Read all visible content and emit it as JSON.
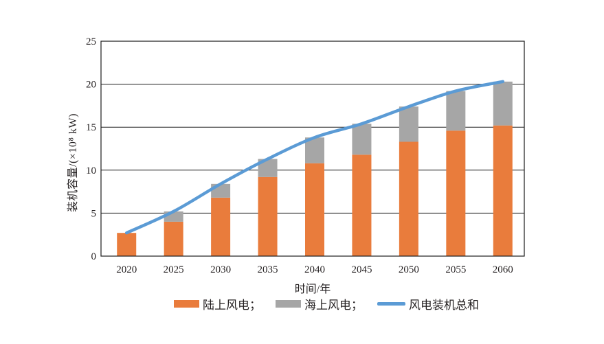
{
  "chart_data": {
    "type": "bar",
    "subtype": "stacked-bars-with-line-overlay",
    "title": "",
    "categories": [
      "2020",
      "2025",
      "2030",
      "2035",
      "2040",
      "2045",
      "2050",
      "2055",
      "2060"
    ],
    "series": [
      {
        "name": "陆上风电",
        "type": "bar",
        "stack": "wind",
        "color": "#E97C3C",
        "values": [
          2.7,
          4.0,
          6.8,
          9.2,
          10.8,
          11.8,
          13.3,
          14.6,
          15.2
        ]
      },
      {
        "name": "海上风电",
        "type": "bar",
        "stack": "wind",
        "color": "#A6A6A6",
        "values": [
          0,
          1.2,
          1.6,
          2.1,
          3.0,
          3.6,
          4.1,
          4.6,
          5.1
        ]
      },
      {
        "name": "风电装机总和",
        "type": "line",
        "color": "#5B9BD5",
        "values": [
          2.7,
          5.2,
          8.4,
          11.3,
          13.8,
          15.4,
          17.4,
          19.2,
          20.3
        ]
      }
    ],
    "xlabel": "时间/年",
    "ylabel": "装机容量/(×10⁸ kW)",
    "ylim": [
      0,
      25
    ],
    "ytick_step": 5,
    "yticks": [
      "0",
      "5",
      "10",
      "15",
      "20",
      "25"
    ],
    "grid": "horizontal",
    "plot_border": true,
    "legend_position": "bottom"
  },
  "legend": {
    "items": [
      {
        "label": "陆上风电；",
        "swatch": "bar",
        "color": "#E97C3C"
      },
      {
        "label": "海上风电；",
        "swatch": "bar",
        "color": "#A6A6A6"
      },
      {
        "label": "风电装机总和",
        "swatch": "line",
        "color": "#5B9BD5"
      }
    ]
  },
  "colors": {
    "onshore_bar": "#E97C3C",
    "offshore_bar": "#A6A6A6",
    "total_line": "#5B9BD5",
    "axis": "#1a1a1a",
    "text": "#231f20",
    "background": "#ffffff"
  }
}
